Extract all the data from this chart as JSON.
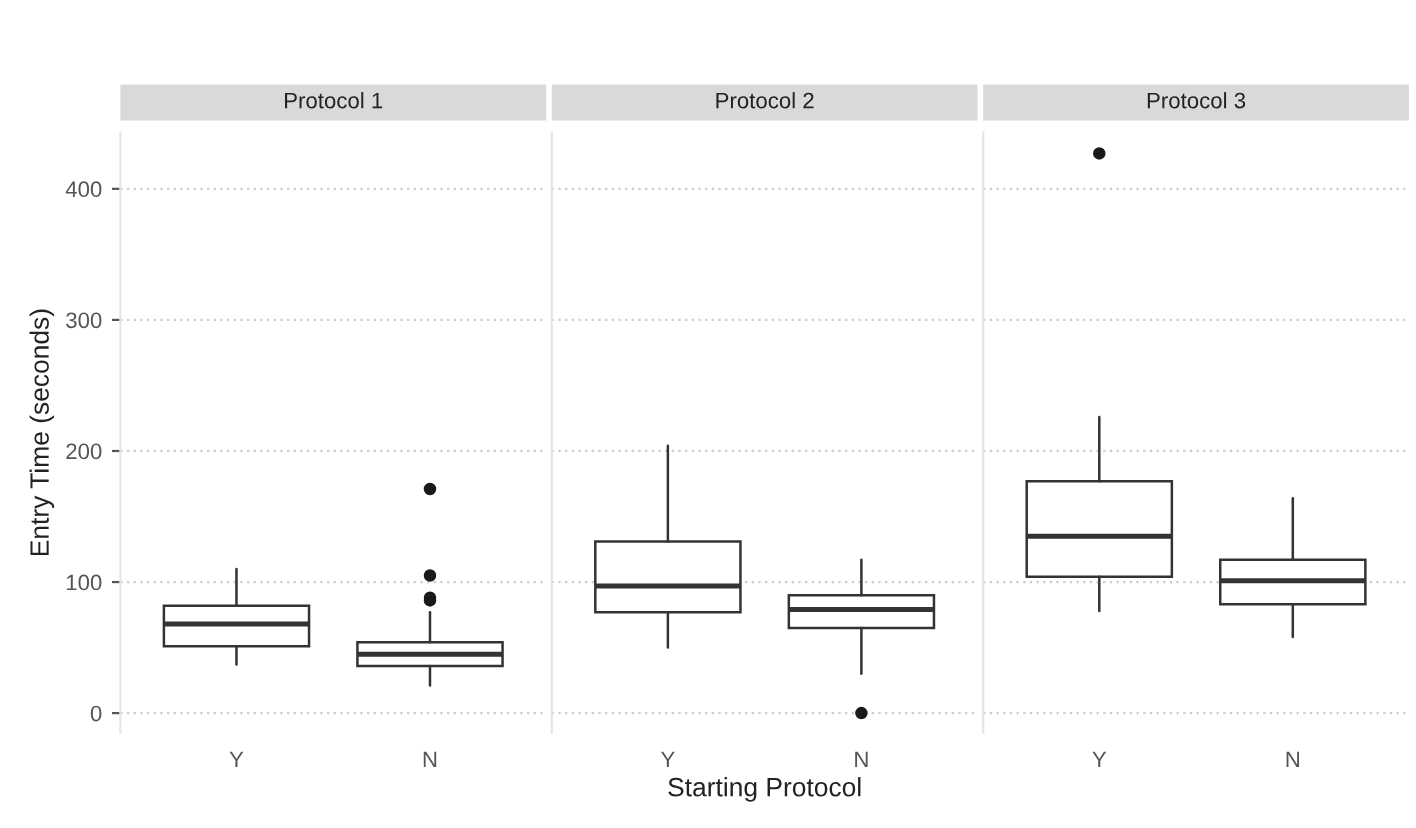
{
  "chart_data": [
    {
      "type": "box",
      "title": "Protocol 1",
      "ylabel": "Entry Time (seconds)",
      "categories": [
        "Y",
        "N"
      ],
      "ylim": [
        -15,
        443
      ],
      "yticks": [
        0,
        100,
        200,
        300,
        400
      ],
      "grid": "y",
      "boxes": [
        {
          "low": 37,
          "q1": 51,
          "median": 68,
          "q3": 82,
          "high": 110
        },
        {
          "low": 21,
          "q1": 36,
          "median": 45,
          "q3": 54,
          "high": 77,
          "outliers": [
            171,
            105,
            88,
            86
          ]
        }
      ]
    },
    {
      "type": "box",
      "title": "Protocol 2",
      "xlabel": "Starting Protocol",
      "categories": [
        "Y",
        "N"
      ],
      "ylim": [
        -15,
        443
      ],
      "yticks": [
        0,
        100,
        200,
        300,
        400
      ],
      "grid": "y",
      "tick_labels": "x",
      "boxes": [
        {
          "low": 50,
          "q1": 77,
          "median": 97,
          "q3": 131,
          "high": 204
        },
        {
          "low": 30,
          "q1": 65,
          "median": 79,
          "q3": 90,
          "high": 117,
          "outliers": [
            0
          ]
        }
      ]
    },
    {
      "type": "box",
      "title": "Protocol 3",
      "categories": [
        "Y",
        "N"
      ],
      "ylim": [
        -15,
        443
      ],
      "yticks": [
        0,
        100,
        200,
        300,
        400
      ],
      "grid": "y",
      "tick_labels": "x",
      "boxes": [
        {
          "low": 78,
          "q1": 104,
          "median": 135,
          "q3": 177,
          "high": 226,
          "outliers": [
            427
          ]
        },
        {
          "low": 58,
          "q1": 83,
          "median": 101,
          "q3": 117,
          "high": 164
        }
      ]
    }
  ]
}
